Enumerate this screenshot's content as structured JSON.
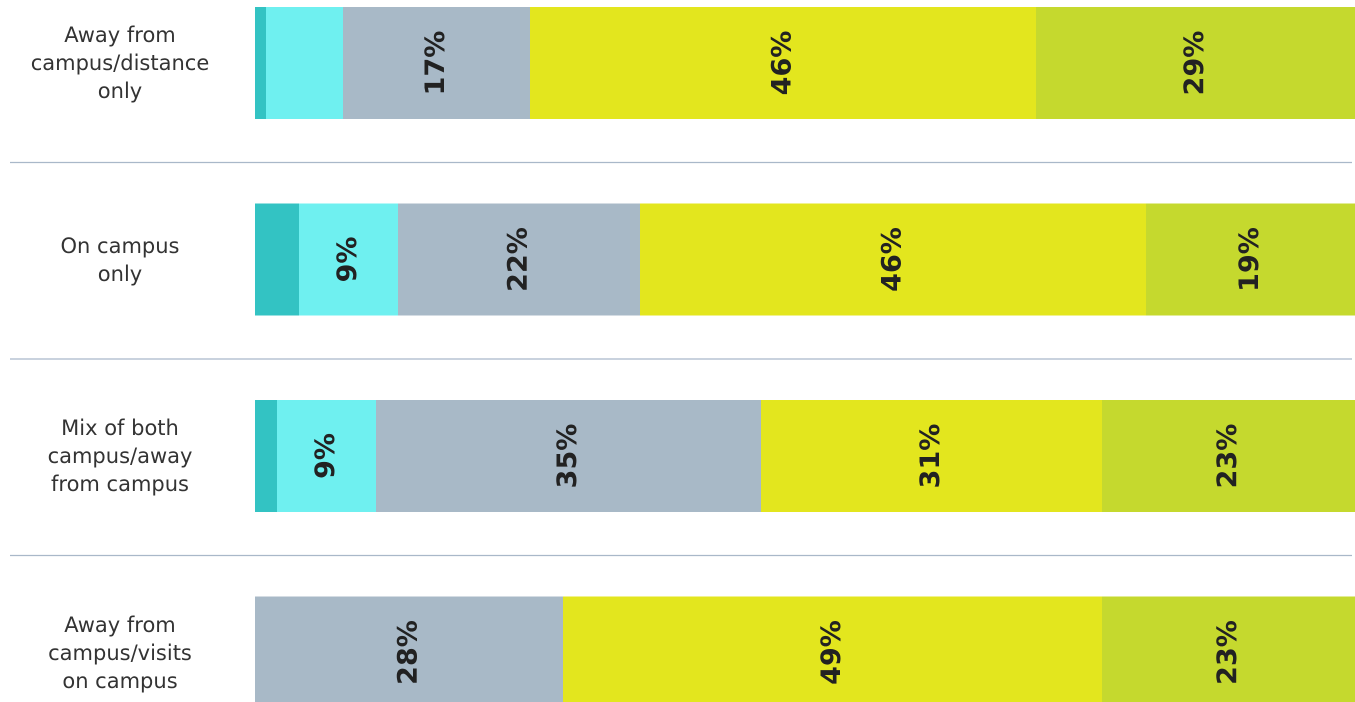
{
  "chart_data": {
    "type": "stacked-bar-horizontal",
    "categories": [
      "Away from\ncampus/distance\nonly",
      "On campus\nonly",
      "Mix of both\ncampus/away\nfrom campus",
      "Away from\ncampus/visits\non campus"
    ],
    "xlim": [
      0,
      100
    ],
    "series": [
      {
        "color": "#33c3c3",
        "values": [
          1,
          4,
          2,
          0
        ],
        "value_labels": [
          null,
          null,
          null,
          null
        ]
      },
      {
        "color": "#6ff0f0",
        "values": [
          7,
          9,
          9,
          0
        ],
        "value_labels": [
          null,
          "9%",
          "9%",
          null
        ]
      },
      {
        "color": "#a8b9c7",
        "values": [
          17,
          22,
          35,
          28
        ],
        "value_labels": [
          "17%",
          "22%",
          "35%",
          "28%"
        ]
      },
      {
        "color": "#e3e61e",
        "values": [
          46,
          46,
          31,
          49
        ],
        "value_labels": [
          "46%",
          "46%",
          "31%",
          "49%"
        ]
      },
      {
        "color": "#c5d92e",
        "values": [
          29,
          19,
          23,
          23
        ],
        "value_labels": [
          "29%",
          "19%",
          "23%",
          "23%"
        ]
      }
    ]
  }
}
